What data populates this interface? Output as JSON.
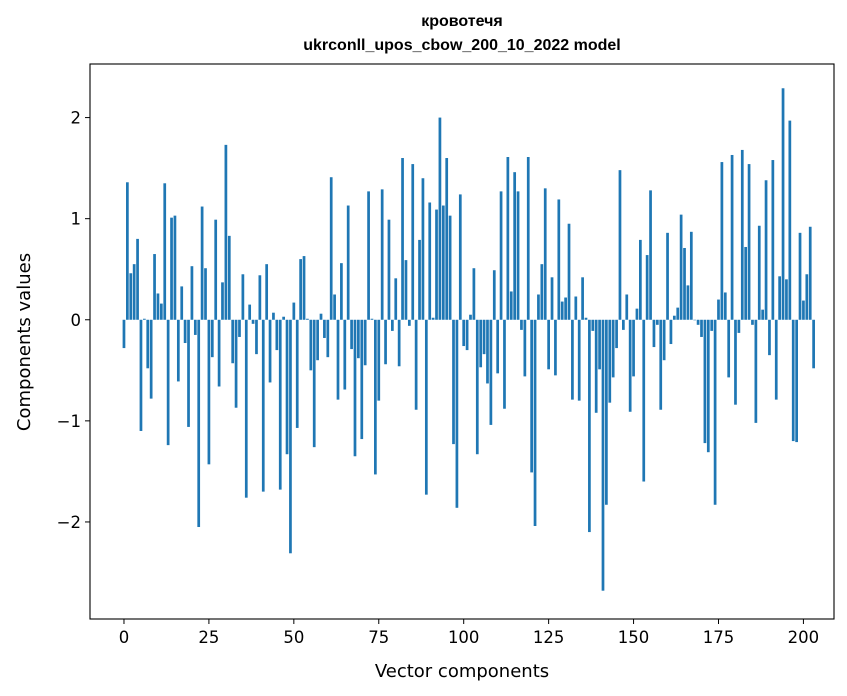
{
  "chart_data": {
    "type": "bar",
    "title": "кровотечя",
    "subtitle": "ukrconll_upos_cbow_200_10_2022 model",
    "xlabel": "Vector components",
    "ylabel": "Components values",
    "xlim": [
      -10,
      209
    ],
    "ylim": [
      -2.96,
      2.53
    ],
    "xticks": [
      0,
      25,
      50,
      75,
      100,
      125,
      150,
      175,
      200
    ],
    "xtick_labels": [
      "0",
      "25",
      "50",
      "75",
      "100",
      "125",
      "150",
      "175",
      "200"
    ],
    "yticks": [
      -2,
      -1,
      0,
      1,
      2
    ],
    "ytick_labels": [
      "−2",
      "−1",
      "0",
      "1",
      "2"
    ],
    "bar_color": "#1f77b4",
    "values": [
      -0.28,
      1.36,
      0.46,
      0.55,
      0.8,
      -1.1,
      0.01,
      -0.48,
      -0.78,
      0.65,
      0.26,
      0.16,
      1.35,
      -1.24,
      1.01,
      1.03,
      -0.61,
      0.33,
      -0.23,
      -1.06,
      0.53,
      -0.15,
      -2.05,
      1.12,
      0.51,
      -1.43,
      -0.37,
      0.99,
      -0.66,
      0.37,
      1.73,
      0.83,
      -0.43,
      -0.87,
      -0.17,
      0.45,
      -1.76,
      0.15,
      -0.04,
      -0.34,
      0.44,
      -1.7,
      0.55,
      -0.62,
      0.07,
      -0.3,
      -1.68,
      0.03,
      -1.33,
      -2.31,
      0.17,
      -1.07,
      0.6,
      0.63,
      0.01,
      -0.5,
      -1.26,
      -0.4,
      0.06,
      -0.18,
      -0.37,
      1.41,
      0.25,
      -0.79,
      0.56,
      -0.69,
      1.13,
      -0.29,
      -1.35,
      -0.38,
      -1.18,
      -0.45,
      1.27,
      0.01,
      -1.53,
      -0.8,
      1.29,
      -0.44,
      0.99,
      -0.11,
      0.41,
      -0.46,
      1.6,
      0.59,
      -0.06,
      1.54,
      -0.89,
      0.79,
      1.4,
      -1.73,
      1.16,
      0.02,
      1.09,
      2.0,
      1.13,
      1.6,
      1.03,
      -1.23,
      -1.86,
      1.24,
      -0.26,
      -0.3,
      0.05,
      0.51,
      -1.33,
      -0.47,
      -0.34,
      -0.63,
      -1.04,
      0.49,
      -0.53,
      1.27,
      -0.88,
      1.61,
      0.28,
      1.46,
      1.27,
      -0.1,
      -0.56,
      1.61,
      -1.51,
      -2.04,
      0.25,
      0.55,
      1.3,
      -0.49,
      0.42,
      -0.55,
      1.19,
      0.18,
      0.22,
      0.95,
      -0.79,
      0.23,
      -0.8,
      0.42,
      0.02,
      -2.1,
      -0.11,
      -0.92,
      -0.49,
      -2.68,
      -1.83,
      -0.82,
      -0.57,
      -0.28,
      1.48,
      -0.1,
      0.25,
      -0.91,
      -0.56,
      0.11,
      0.79,
      -1.6,
      0.64,
      1.28,
      -0.27,
      -0.05,
      -0.89,
      -0.4,
      0.86,
      -0.24,
      0.04,
      0.12,
      1.04,
      0.71,
      0.34,
      0.87,
      0.0,
      -0.05,
      -0.17,
      -1.22,
      -1.31,
      -0.11,
      -1.83,
      0.2,
      1.56,
      0.27,
      -0.57,
      1.63,
      -0.84,
      -0.13,
      1.68,
      0.72,
      1.54,
      -0.05,
      -1.02,
      0.93,
      0.1,
      1.38,
      -0.35,
      1.58,
      -0.79,
      0.43,
      2.29,
      0.4,
      1.97,
      -1.2,
      -1.21,
      0.86,
      0.19,
      0.45,
      0.92,
      -0.48
    ]
  }
}
